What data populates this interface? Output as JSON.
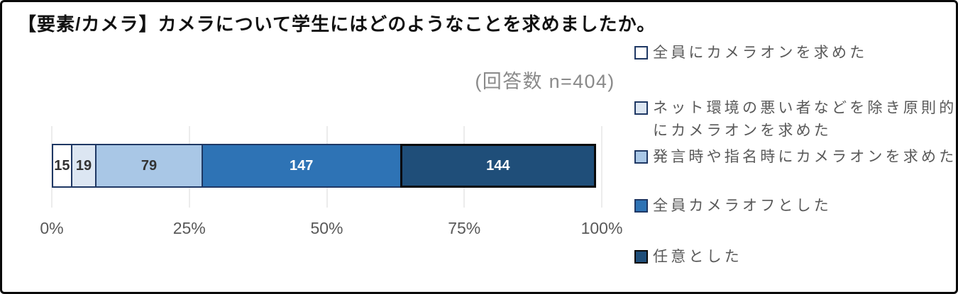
{
  "title": "【要素/カメラ】カメラについて学生にはどのようなことを求めましたか。",
  "note": "(回答数 n=404)",
  "chart_data": {
    "type": "bar",
    "subtype": "stacked-horizontal",
    "title": "【要素/カメラ】カメラについて学生にはどのようなことを求めましたか。",
    "n_label": "(回答数 n=404)",
    "total": 404,
    "segments": [
      {
        "label": "全員にカメラオンを求めた",
        "value": 15,
        "fill": "#ffffff",
        "border": "#1f3864",
        "border_width": 2,
        "label_color": "#333333"
      },
      {
        "label": "ネット環境の悪い者などを除き原則的にカメラオンを求めた",
        "value": 19,
        "fill": "#dce6f2",
        "border": "#1f3864",
        "border_width": 2,
        "label_color": "#333333"
      },
      {
        "label": "発言時や指名時にカメラオンを求めた",
        "value": 79,
        "fill": "#a9c7e6",
        "border": "#1f3864",
        "border_width": 2,
        "label_color": "#333333"
      },
      {
        "label": "全員カメラオフとした",
        "value": 147,
        "fill": "#2e73b5",
        "border": "#1f3864",
        "border_width": 2,
        "label_color": "#ffffff"
      },
      {
        "label": "任意とした",
        "value": 144,
        "fill": "#1f4e79",
        "border": "#0a0a0a",
        "border_width": 3,
        "label_color": "#ffffff"
      }
    ],
    "x_ticks": [
      "0%",
      "25%",
      "50%",
      "75%",
      "100%"
    ],
    "xlim": [
      0,
      100
    ],
    "grid": true,
    "legend_position": "right"
  },
  "legend": {
    "items": [
      {
        "lines": [
          "全員にカメラオンを求めた"
        ],
        "fill": "#ffffff",
        "border": "#1f3864"
      },
      {
        "lines": [
          "ネット環境の悪い者などを除き原則的",
          "にカメラオンを求めた"
        ],
        "fill": "#dce6f2",
        "border": "#1f3864"
      },
      {
        "lines": [
          "発言時や指名時にカメラオンを求めた"
        ],
        "fill": "#a9c7e6",
        "border": "#1f3864"
      },
      {
        "lines": [
          "全員カメラオフとした"
        ],
        "fill": "#2e73b5",
        "border": "#1f3864"
      },
      {
        "lines": [
          "任意とした"
        ],
        "fill": "#1f4e79",
        "border": "#0a0a0a"
      }
    ]
  }
}
